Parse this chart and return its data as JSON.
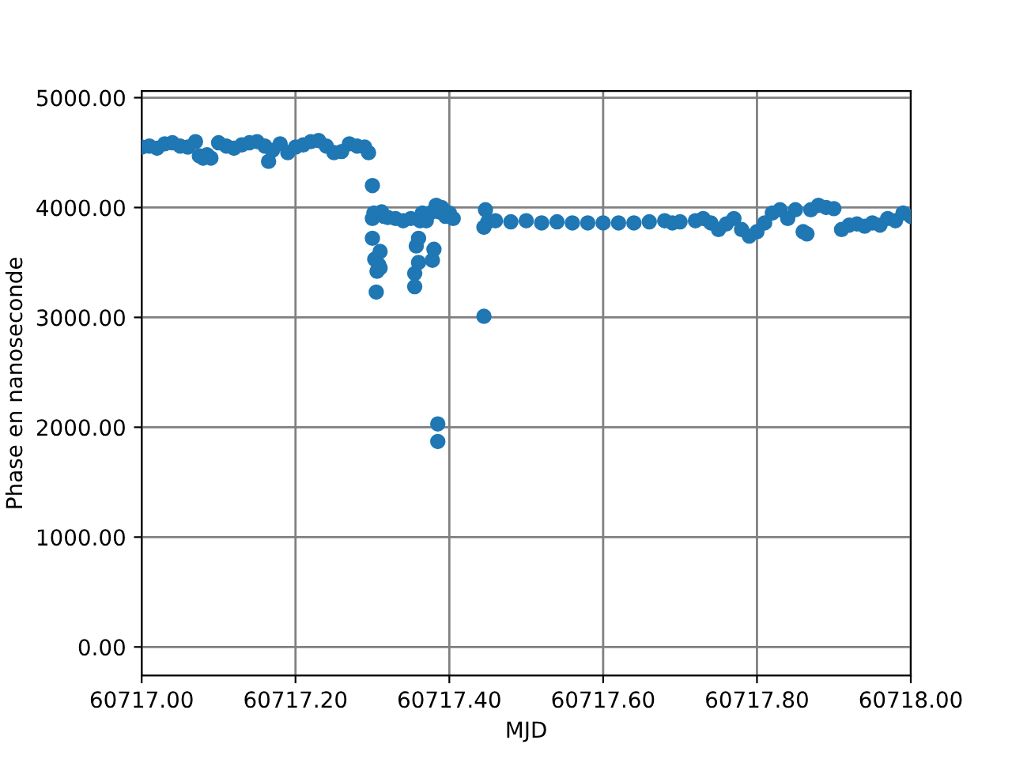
{
  "chart_data": {
    "type": "scatter",
    "xlabel": "MJD",
    "ylabel": "Phase en nanoseconde",
    "xlim": [
      60717.0,
      60718.0
    ],
    "ylim": [
      -260,
      5060
    ],
    "xticks": [
      {
        "value": 60717.0,
        "label": "60717.00"
      },
      {
        "value": 60717.2,
        "label": "60717.20"
      },
      {
        "value": 60717.4,
        "label": "60717.40"
      },
      {
        "value": 60717.6,
        "label": "60717.60"
      },
      {
        "value": 60717.8,
        "label": "60717.80"
      },
      {
        "value": 60718.0,
        "label": "60718.00"
      }
    ],
    "yticks": [
      {
        "value": 0,
        "label": "0.00"
      },
      {
        "value": 1000,
        "label": "1000.00"
      },
      {
        "value": 2000,
        "label": "2000.00"
      },
      {
        "value": 3000,
        "label": "3000.00"
      },
      {
        "value": 4000,
        "label": "4000.00"
      },
      {
        "value": 5000,
        "label": "5000.00"
      }
    ],
    "grid": true,
    "marker": "circle",
    "color": "#1f77b4",
    "x": [
      60717.0,
      60717.01,
      60717.02,
      60717.03,
      60717.04,
      60717.05,
      60717.06,
      60717.07,
      60717.075,
      60717.08,
      60717.085,
      60717.09,
      60717.1,
      60717.11,
      60717.12,
      60717.13,
      60717.14,
      60717.15,
      60717.16,
      60717.165,
      60717.17,
      60717.18,
      60717.19,
      60717.2,
      60717.21,
      60717.22,
      60717.23,
      60717.24,
      60717.25,
      60717.26,
      60717.27,
      60717.28,
      60717.29,
      60717.295,
      60717.3,
      60717.3,
      60717.3,
      60717.302,
      60717.303,
      60717.305,
      60717.306,
      60717.308,
      60717.31,
      60717.31,
      60717.312,
      60717.315,
      60717.32,
      60717.33,
      60717.34,
      60717.35,
      60717.355,
      60717.355,
      60717.357,
      60717.36,
      60717.36,
      60717.362,
      60717.365,
      60717.37,
      60717.375,
      60717.378,
      60717.38,
      60717.383,
      60717.385,
      60717.385,
      60717.387,
      60717.39,
      60717.395,
      60717.4,
      60717.405,
      60717.445,
      60717.445,
      60717.447,
      60717.45,
      60717.46,
      60717.48,
      60717.5,
      60717.52,
      60717.54,
      60717.56,
      60717.58,
      60717.6,
      60717.62,
      60717.64,
      60717.66,
      60717.68,
      60717.69,
      60717.7,
      60717.72,
      60717.73,
      60717.74,
      60717.75,
      60717.76,
      60717.77,
      60717.78,
      60717.79,
      60717.8,
      60717.81,
      60717.82,
      60717.83,
      60717.84,
      60717.85,
      60717.86,
      60717.865,
      60717.87,
      60717.88,
      60717.89,
      60717.9,
      60717.91,
      60717.92,
      60717.93,
      60717.94,
      60717.95,
      60717.96,
      60717.97,
      60717.98,
      60717.99,
      60718.0
    ],
    "values": [
      4550,
      4560,
      4540,
      4580,
      4590,
      4560,
      4550,
      4600,
      4470,
      4450,
      4480,
      4450,
      4590,
      4560,
      4540,
      4570,
      4590,
      4600,
      4560,
      4420,
      4520,
      4580,
      4500,
      4550,
      4570,
      4600,
      4610,
      4560,
      4500,
      4510,
      4580,
      4560,
      4550,
      4500,
      4200,
      3900,
      3720,
      3950,
      3530,
      3230,
      3420,
      3480,
      3600,
      3450,
      3960,
      3920,
      3910,
      3900,
      3880,
      3900,
      3400,
      3280,
      3650,
      3720,
      3500,
      3880,
      3950,
      3880,
      3950,
      3520,
      3620,
      4020,
      2030,
      1870,
      3960,
      4000,
      3920,
      3950,
      3900,
      3820,
      3010,
      3980,
      3870,
      3880,
      3870,
      3880,
      3860,
      3870,
      3860,
      3860,
      3860,
      3860,
      3860,
      3870,
      3880,
      3860,
      3870,
      3880,
      3900,
      3860,
      3800,
      3850,
      3900,
      3800,
      3740,
      3780,
      3860,
      3950,
      3980,
      3900,
      3980,
      3780,
      3760,
      3980,
      4020,
      4000,
      3990,
      3800,
      3840,
      3850,
      3830,
      3860,
      3840,
      3900,
      3880,
      3950,
      3920
    ]
  }
}
